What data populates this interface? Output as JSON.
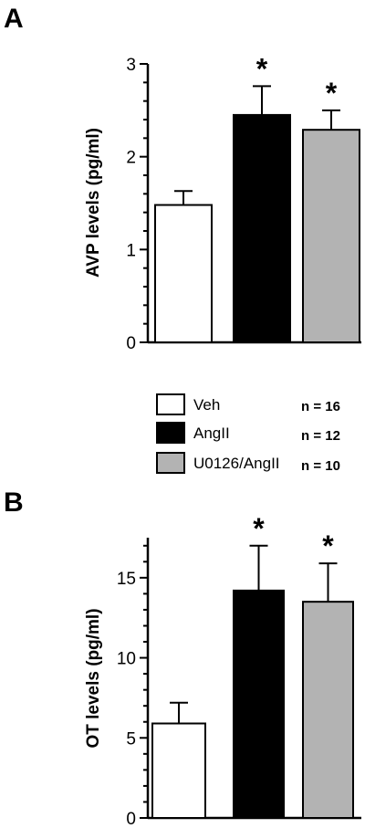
{
  "legend": [
    {
      "label": "Veh",
      "fill": "#ffffff",
      "n": "n = 16"
    },
    {
      "label": "AngII",
      "fill": "#000000",
      "n": "n = 12"
    },
    {
      "label": "U0126/AngII",
      "fill": "#b3b3b3",
      "n": "n = 10"
    }
  ],
  "chart_data": [
    {
      "type": "bar",
      "panel_label": "A",
      "ylabel": "AVP levels (pg/ml)",
      "ylim": [
        0,
        3
      ],
      "yticks": [
        0,
        1,
        2,
        3
      ],
      "categories": [
        "Veh",
        "AngII",
        "U0126/AngII"
      ],
      "values": [
        1.48,
        2.45,
        2.29
      ],
      "errors": [
        0.15,
        0.31,
        0.21
      ],
      "colors": [
        "#ffffff",
        "#000000",
        "#b3b3b3"
      ],
      "annotations": [
        "",
        "*",
        "*"
      ]
    },
    {
      "type": "bar",
      "panel_label": "B",
      "ylabel": "OT levels (pg/ml)",
      "ylim": [
        0,
        17.5
      ],
      "yticks": [
        0,
        5,
        10,
        15
      ],
      "categories": [
        "Veh",
        "AngII",
        "U0126/AngII"
      ],
      "values": [
        5.9,
        14.2,
        13.5
      ],
      "errors": [
        1.3,
        2.8,
        2.4
      ],
      "colors": [
        "#ffffff",
        "#000000",
        "#b3b3b3"
      ],
      "annotations": [
        "",
        "*",
        "*"
      ]
    }
  ]
}
